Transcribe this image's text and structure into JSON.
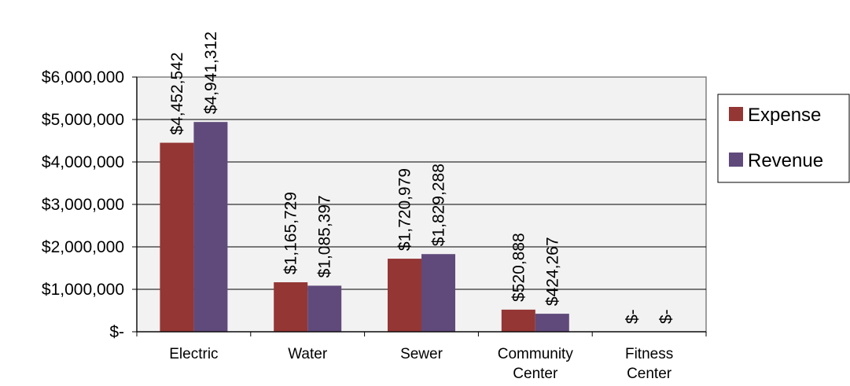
{
  "chart_data": {
    "type": "bar",
    "categories": [
      [
        "Electric"
      ],
      [
        "Water"
      ],
      [
        "Sewer"
      ],
      [
        "Community",
        "Center"
      ],
      [
        "Fitness",
        "Center"
      ]
    ],
    "series": [
      {
        "name": "Expense",
        "color": "#943634",
        "values": [
          4452542,
          1165729,
          1720979,
          520888,
          0
        ],
        "labels": [
          "$4,452,542",
          "$1,165,729",
          "$1,720,979",
          "$520,888",
          "$-"
        ]
      },
      {
        "name": "Revenue",
        "color": "#604a7b",
        "values": [
          4941312,
          1085397,
          1829288,
          424267,
          0
        ],
        "labels": [
          "$4,941,312",
          "$1,085,397",
          "$1,829,288",
          "$424,267",
          "$-"
        ]
      }
    ],
    "y_ticks": [
      {
        "value": 0,
        "label": "$-"
      },
      {
        "value": 1000000,
        "label": "$1,000,000"
      },
      {
        "value": 2000000,
        "label": "$2,000,000"
      },
      {
        "value": 3000000,
        "label": "$3,000,000"
      },
      {
        "value": 4000000,
        "label": "$4,000,000"
      },
      {
        "value": 5000000,
        "label": "$5,000,000"
      },
      {
        "value": 6000000,
        "label": "$6,000,000"
      }
    ],
    "ylim": [
      0,
      6000000
    ],
    "grid": true,
    "legend_position": "right",
    "plot_background": "#f2f2f2"
  }
}
